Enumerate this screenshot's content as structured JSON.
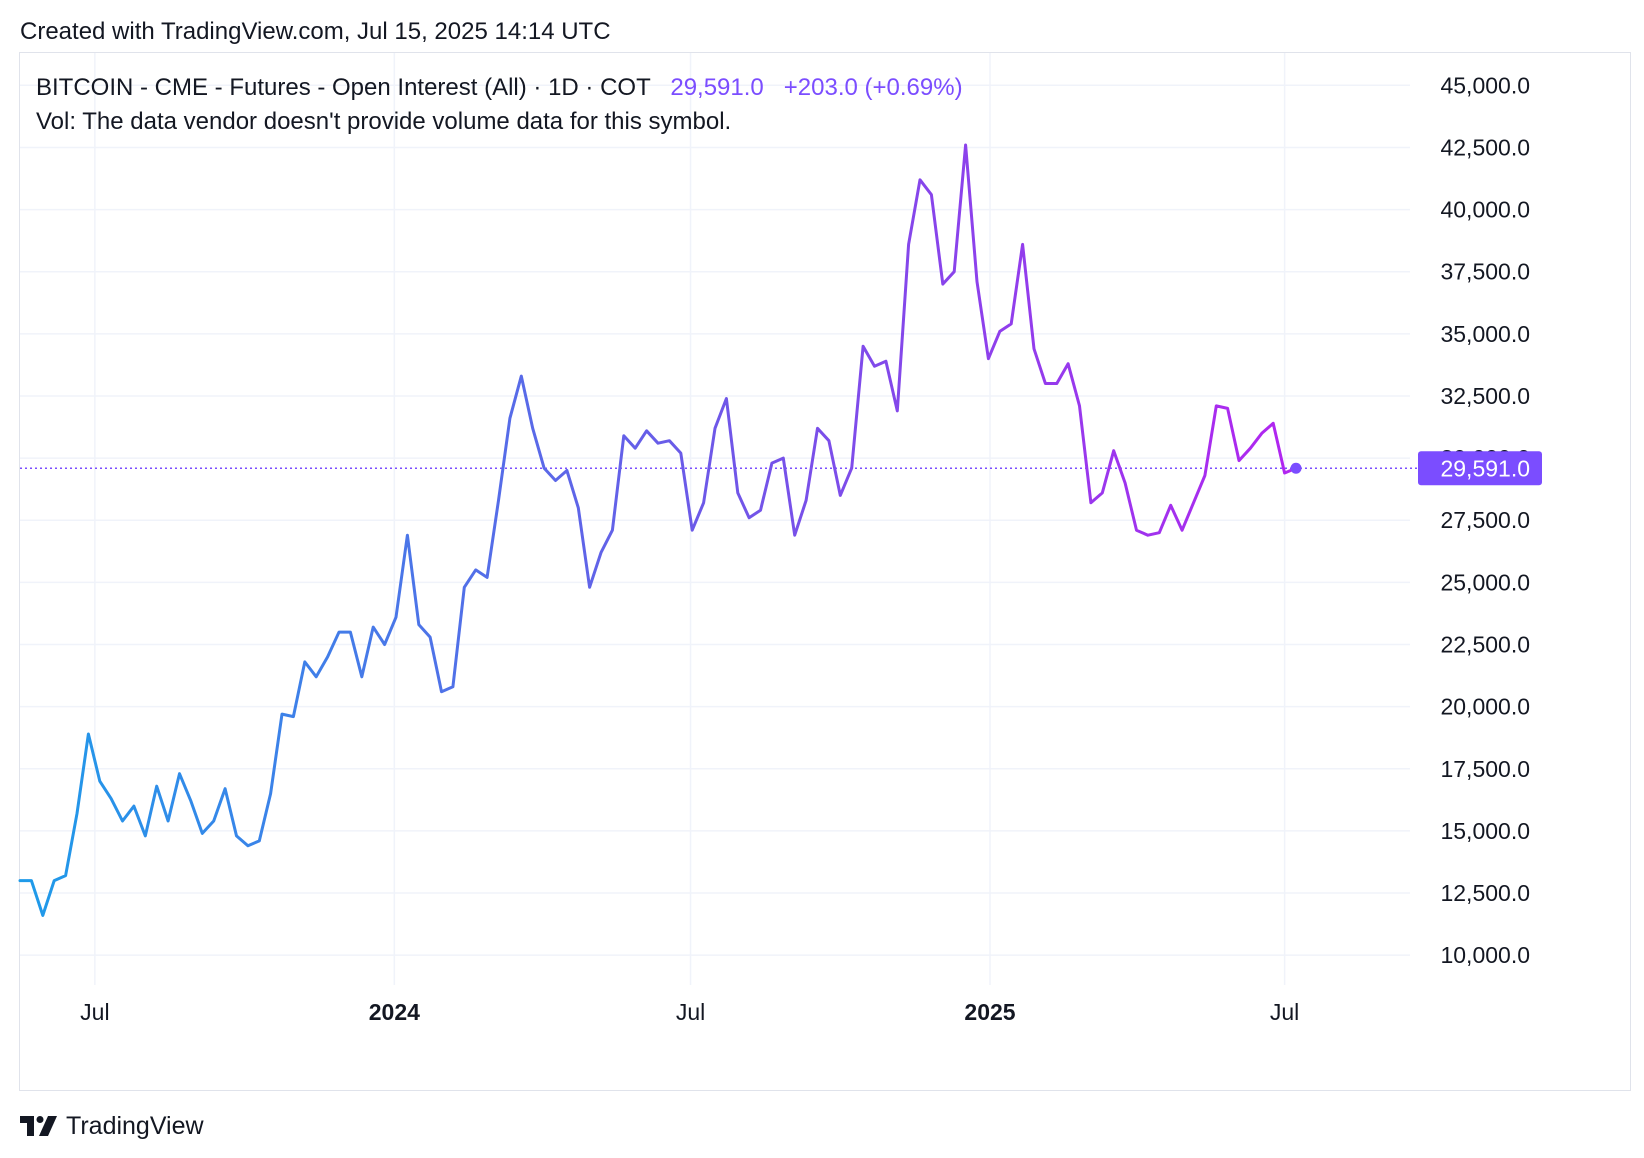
{
  "header": {
    "created": "Created with TradingView.com, Jul 15, 2025 14:14 UTC"
  },
  "legend": {
    "symbol": "BITCOIN - CME - Futures - Open Interest (All) · 1D · COT",
    "last": "29,591.0",
    "change": "+203.0",
    "change_pct": "(+0.69%)",
    "volume_note": "Vol: The data vendor doesn't provide volume data for this symbol."
  },
  "footer": {
    "brand": "TradingView",
    "logo_icon": "tradingview-logo-icon"
  },
  "colors": {
    "line_start": "#1e9be9",
    "line_mid": "#6f57e8",
    "line_end": "#b225f0",
    "accent": "#7b4dff",
    "grid": "#f0f3fa"
  },
  "chart_data": {
    "type": "line",
    "title": "",
    "xlabel": "",
    "ylabel": "",
    "ylim": [
      8800,
      46300
    ],
    "y_ticks": [
      10000,
      12500,
      15000,
      17500,
      20000,
      22500,
      25000,
      27500,
      30000,
      32500,
      35000,
      37500,
      40000,
      42500,
      45000
    ],
    "y_tick_labels": [
      "10,000.0",
      "12,500.0",
      "15,000.0",
      "17,500.0",
      "20,000.0",
      "22,500.0",
      "25,000.0",
      "27,500.0",
      "30,000.0",
      "32,500.0",
      "35,000.0",
      "37,500.0",
      "40,000.0",
      "42,500.0",
      "45,000.0"
    ],
    "x_ticks": [
      {
        "date": "2023-07-01",
        "label": "Jul",
        "bold": false
      },
      {
        "date": "2024-01-01",
        "label": "2024",
        "bold": true
      },
      {
        "date": "2024-07-01",
        "label": "Jul",
        "bold": false
      },
      {
        "date": "2025-01-01",
        "label": "2025",
        "bold": true
      },
      {
        "date": "2025-07-01",
        "label": "Jul",
        "bold": false
      }
    ],
    "last_value": 29591.0,
    "last_value_label": "29,591.0",
    "grid": true,
    "series": [
      {
        "x": [
          "2023-05-16",
          "2023-05-23",
          "2023-05-30",
          "2023-06-06",
          "2023-06-13",
          "2023-06-20",
          "2023-06-27",
          "2023-07-04",
          "2023-07-11",
          "2023-07-18",
          "2023-07-25",
          "2023-08-01",
          "2023-08-08",
          "2023-08-15",
          "2023-08-22",
          "2023-08-29",
          "2023-09-05",
          "2023-09-12",
          "2023-09-19",
          "2023-09-26",
          "2023-10-03",
          "2023-10-10",
          "2023-10-17",
          "2023-10-24",
          "2023-10-31",
          "2023-11-07",
          "2023-11-14",
          "2023-11-21",
          "2023-11-28",
          "2023-12-05",
          "2023-12-12",
          "2023-12-19",
          "2023-12-26",
          "2024-01-02",
          "2024-01-09",
          "2024-01-16",
          "2024-01-23",
          "2024-01-30",
          "2024-02-06",
          "2024-02-13",
          "2024-02-20",
          "2024-02-27",
          "2024-03-05",
          "2024-03-12",
          "2024-03-19",
          "2024-03-26",
          "2024-04-02",
          "2024-04-09",
          "2024-04-16",
          "2024-04-23",
          "2024-04-30",
          "2024-05-07",
          "2024-05-14",
          "2024-05-21",
          "2024-05-28",
          "2024-06-04",
          "2024-06-11",
          "2024-06-18",
          "2024-06-25",
          "2024-07-02",
          "2024-07-09",
          "2024-07-16",
          "2024-07-23",
          "2024-07-30",
          "2024-08-06",
          "2024-08-13",
          "2024-08-20",
          "2024-08-27",
          "2024-09-03",
          "2024-09-10",
          "2024-09-17",
          "2024-09-24",
          "2024-10-01",
          "2024-10-08",
          "2024-10-15",
          "2024-10-22",
          "2024-10-29",
          "2024-11-05",
          "2024-11-12",
          "2024-11-19",
          "2024-11-26",
          "2024-12-03",
          "2024-12-10",
          "2024-12-17",
          "2024-12-24",
          "2024-12-31",
          "2025-01-07",
          "2025-01-14",
          "2025-01-21",
          "2025-01-28",
          "2025-02-04",
          "2025-02-11",
          "2025-02-18",
          "2025-02-25",
          "2025-03-04",
          "2025-03-11",
          "2025-03-18",
          "2025-03-25",
          "2025-04-01",
          "2025-04-08",
          "2025-04-15",
          "2025-04-22",
          "2025-04-29",
          "2025-05-06",
          "2025-05-13",
          "2025-05-20",
          "2025-05-27",
          "2025-06-03",
          "2025-06-10",
          "2025-06-17",
          "2025-06-24",
          "2025-07-01",
          "2025-07-08"
        ],
        "values": [
          13000,
          13000,
          11600,
          13000,
          13200,
          15700,
          18900,
          17000,
          16300,
          15400,
          16000,
          14800,
          16800,
          15400,
          17300,
          16200,
          14900,
          15400,
          16700,
          14800,
          14400,
          14600,
          16500,
          19700,
          19600,
          21800,
          21200,
          22000,
          23000,
          23000,
          21200,
          23200,
          22500,
          23600,
          26900,
          23300,
          22800,
          20600,
          20800,
          24800,
          25500,
          25200,
          28300,
          31600,
          33300,
          31200,
          29600,
          29100,
          29500,
          28000,
          24800,
          26200,
          27100,
          30900,
          30400,
          31100,
          30600,
          30700,
          30200,
          27100,
          28200,
          31200,
          32400,
          28600,
          27600,
          27900,
          29800,
          30000,
          26900,
          28300,
          31200,
          30700,
          28500,
          29600,
          34500,
          33700,
          33900,
          31900,
          38600,
          41200,
          40600,
          37000,
          37500,
          42600,
          37100,
          34000,
          35100,
          35400,
          38600,
          34400,
          33000,
          33000,
          33800,
          32100,
          28200,
          28600,
          30300,
          29000,
          27100,
          26900,
          27000,
          28100,
          27100,
          28200,
          29300,
          32100,
          32000,
          29900,
          30400,
          31000,
          31400,
          29400,
          29591
        ]
      }
    ]
  }
}
